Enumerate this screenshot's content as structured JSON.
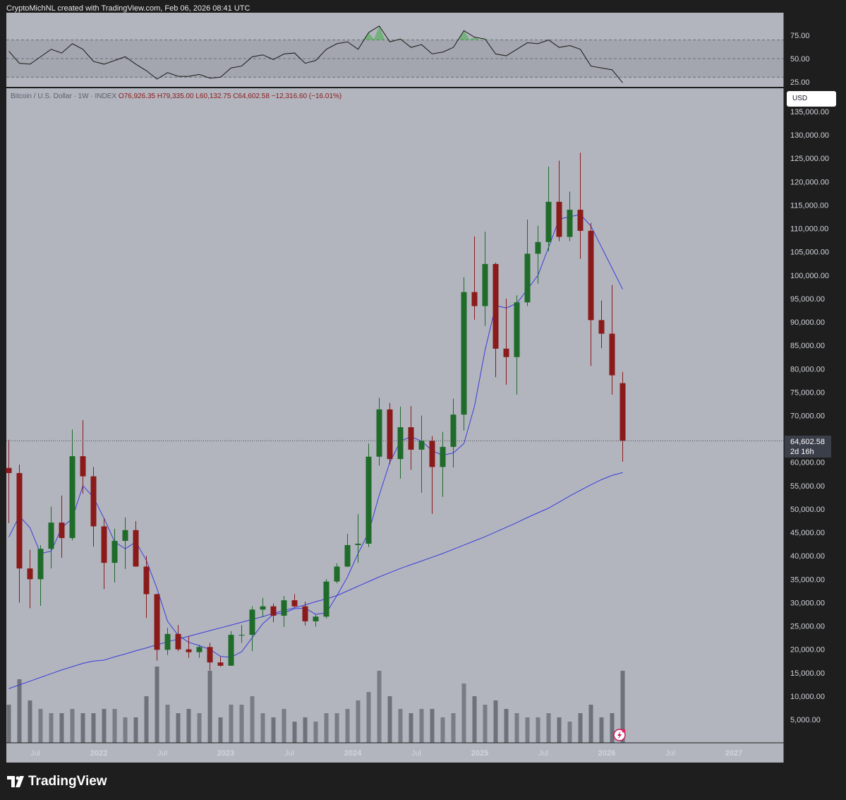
{
  "header": {
    "attribution": "CryptoMichNL created with TradingView.com, Feb 06, 2026 08:41 UTC"
  },
  "legend": {
    "symbol": "Bitcoin / U.S. Dollar · 1W · INDEX",
    "open": "O76,926.35",
    "high": "H79,335.00",
    "low": "L60,132.75",
    "close": "C64,602.58",
    "change": "−12,316.60 (−16.01%)"
  },
  "currency_button": "USD",
  "last_price": {
    "value": "64,602.58",
    "countdown": "2d 16h"
  },
  "brand": "TradingView",
  "colors": {
    "background": "#b2b5be",
    "up": "#1e6b2a",
    "down": "#8b1a1a",
    "ma": "#3c3cdc",
    "rsi_line": "#1a1a1a",
    "rsi_overbought_fill": "#4caf50"
  },
  "chart_data": [
    {
      "type": "candlestick",
      "title": "Bitcoin / U.S. Dollar · 1W · INDEX",
      "x_tick_labels": [
        "Jul",
        "2022",
        "Jul",
        "2023",
        "Jul",
        "2024",
        "Jul",
        "2025",
        "Jul",
        "2026",
        "Jul",
        "2027"
      ],
      "y_tick_labels": [
        "135,000.00",
        "130,000.00",
        "125,000.00",
        "120,000.00",
        "115,000.00",
        "110,000.00",
        "105,000.00",
        "100,000.00",
        "95,000.00",
        "90,000.00",
        "85,000.00",
        "80,000.00",
        "75,000.00",
        "70,000.00",
        "60,000.00",
        "55,000.00",
        "50,000.00",
        "45,000.00",
        "40,000.00",
        "35,000.00",
        "30,000.00",
        "25,000.00",
        "20,000.00",
        "15,000.00",
        "10,000.00",
        "5,000.00"
      ],
      "ylim": [
        0,
        140000
      ],
      "xlim": [
        "2021-04",
        "2027-03"
      ],
      "grid": false,
      "periods": [
        "2021-04",
        "2021-05",
        "2021-06",
        "2021-07",
        "2021-08",
        "2021-09",
        "2021-10",
        "2021-11",
        "2021-12",
        "2022-01",
        "2022-02",
        "2022-03",
        "2022-04",
        "2022-05",
        "2022-06",
        "2022-07",
        "2022-08",
        "2022-09",
        "2022-10",
        "2022-11",
        "2022-12",
        "2023-01",
        "2023-02",
        "2023-03",
        "2023-04",
        "2023-05",
        "2023-06",
        "2023-07",
        "2023-08",
        "2023-09",
        "2023-10",
        "2023-11",
        "2023-12",
        "2024-01",
        "2024-02",
        "2024-03",
        "2024-04",
        "2024-05",
        "2024-06",
        "2024-07",
        "2024-08",
        "2024-09",
        "2024-10",
        "2024-11",
        "2024-12",
        "2025-01",
        "2025-02",
        "2025-03",
        "2025-04",
        "2025-05",
        "2025-06",
        "2025-07",
        "2025-08",
        "2025-09",
        "2025-10",
        "2025-11",
        "2025-12",
        "2026-01",
        "2026-02"
      ],
      "ohlc": [
        [
          58800,
          64800,
          47000,
          57700
        ],
        [
          57700,
          59500,
          30000,
          37300
        ],
        [
          37300,
          41300,
          28800,
          35000
        ],
        [
          35000,
          42300,
          29300,
          41500
        ],
        [
          41500,
          50500,
          37300,
          47100
        ],
        [
          47100,
          52900,
          39600,
          43800
        ],
        [
          43800,
          67000,
          43300,
          61300
        ],
        [
          61300,
          69000,
          53300,
          57000
        ],
        [
          57000,
          59000,
          42000,
          46300
        ],
        [
          46300,
          48000,
          32900,
          38500
        ],
        [
          38500,
          45800,
          34300,
          43200
        ],
        [
          43200,
          48200,
          37200,
          45500
        ],
        [
          45500,
          47400,
          37700,
          37700
        ],
        [
          37700,
          40000,
          26700,
          31800
        ],
        [
          31800,
          31900,
          17600,
          19900
        ],
        [
          19900,
          24600,
          18800,
          23300
        ],
        [
          23300,
          25200,
          19600,
          20000
        ],
        [
          20000,
          22800,
          18200,
          19400
        ],
        [
          19400,
          21000,
          18200,
          20500
        ],
        [
          20500,
          21400,
          15500,
          17200
        ],
        [
          17200,
          18400,
          16300,
          16500
        ],
        [
          16500,
          23900,
          16500,
          23100
        ],
        [
          23100,
          25200,
          21400,
          23100
        ],
        [
          23100,
          29200,
          19600,
          28500
        ],
        [
          28500,
          31000,
          26900,
          29200
        ],
        [
          29200,
          29800,
          25800,
          27200
        ],
        [
          27200,
          31400,
          24800,
          30500
        ],
        [
          30500,
          31800,
          29000,
          29200
        ],
        [
          29200,
          30200,
          25100,
          26000
        ],
        [
          26000,
          27400,
          24900,
          27000
        ],
        [
          27000,
          35000,
          26600,
          34500
        ],
        [
          34500,
          38400,
          34100,
          37700
        ],
        [
          37700,
          44700,
          37600,
          42300
        ],
        [
          42300,
          48900,
          38500,
          42600
        ],
        [
          42600,
          64000,
          41900,
          61200
        ],
        [
          61200,
          73800,
          59300,
          71300
        ],
        [
          71300,
          72700,
          59600,
          60700
        ],
        [
          60700,
          71900,
          56500,
          67500
        ],
        [
          67500,
          72000,
          58400,
          62700
        ],
        [
          62700,
          70000,
          53500,
          64600
        ],
        [
          64600,
          65600,
          49000,
          59000
        ],
        [
          59000,
          66500,
          52600,
          63300
        ],
        [
          63300,
          73600,
          58900,
          70200
        ],
        [
          70200,
          99600,
          66800,
          96400
        ],
        [
          96400,
          108300,
          90500,
          93400
        ],
        [
          93400,
          109300,
          89200,
          102400
        ],
        [
          102400,
          102700,
          78200,
          84300
        ],
        [
          84300,
          95000,
          76600,
          82500
        ],
        [
          82500,
          95700,
          74500,
          94200
        ],
        [
          94200,
          111900,
          93400,
          104600
        ],
        [
          104600,
          110600,
          98200,
          107100
        ],
        [
          107100,
          123200,
          105100,
          115700
        ],
        [
          115700,
          124500,
          107300,
          108200
        ],
        [
          108200,
          117900,
          107300,
          114000
        ],
        [
          114000,
          126200,
          103500,
          109500
        ],
        [
          109500,
          111200,
          80600,
          90400
        ],
        [
          90400,
          94600,
          84400,
          87500
        ],
        [
          87500,
          97900,
          74500,
          78600
        ],
        [
          76926.35,
          79335.0,
          60132.75,
          64602.58
        ]
      ],
      "ma_short": [
        44000,
        48500,
        46000,
        40500,
        41000,
        46000,
        48000,
        55000,
        52500,
        48000,
        43000,
        41500,
        43000,
        39000,
        33000,
        26000,
        23000,
        21500,
        20800,
        20000,
        18500,
        18300,
        19500,
        22500,
        25500,
        27500,
        27800,
        28700,
        28800,
        27500,
        27800,
        31500,
        35500,
        40500,
        45000,
        53000,
        60000,
        64500,
        65500,
        64500,
        62500,
        61500,
        62000,
        64000,
        72000,
        84000,
        93500,
        93000,
        94000,
        97000,
        100000,
        106000,
        112000,
        112500,
        113000,
        110500,
        106000,
        101500,
        97000
      ],
      "ma_long": [
        11600,
        12400,
        13200,
        14000,
        14800,
        15600,
        16300,
        17000,
        17500,
        17700,
        18400,
        19000,
        19700,
        20300,
        21000,
        21600,
        22200,
        22800,
        23400,
        24000,
        24600,
        25200,
        25800,
        26400,
        27000,
        27700,
        28300,
        28900,
        29500,
        30200,
        30800,
        31500,
        32500,
        33500,
        34500,
        35500,
        36400,
        37300,
        38100,
        38900,
        39700,
        40500,
        41400,
        42300,
        43200,
        44100,
        45100,
        46100,
        47100,
        48200,
        49200,
        50200,
        51500,
        52800,
        54000,
        55200,
        56300,
        57200,
        57800
      ],
      "volume_relative": [
        0.45,
        0.75,
        0.5,
        0.4,
        0.35,
        0.35,
        0.4,
        0.35,
        0.35,
        0.4,
        0.4,
        0.3,
        0.3,
        0.55,
        0.9,
        0.45,
        0.35,
        0.4,
        0.35,
        0.85,
        0.3,
        0.45,
        0.45,
        0.55,
        0.35,
        0.3,
        0.4,
        0.25,
        0.3,
        0.25,
        0.35,
        0.35,
        0.4,
        0.5,
        0.6,
        0.85,
        0.55,
        0.4,
        0.35,
        0.4,
        0.4,
        0.3,
        0.35,
        0.7,
        0.55,
        0.45,
        0.5,
        0.4,
        0.35,
        0.3,
        0.3,
        0.35,
        0.3,
        0.25,
        0.35,
        0.45,
        0.3,
        0.35,
        0.85
      ],
      "last_price": 64602.58
    },
    {
      "type": "line",
      "title": "",
      "y_tick_labels": [
        "75.00",
        "50.00",
        "25.00"
      ],
      "ylim": [
        15,
        95
      ],
      "bands": [
        30,
        50,
        70
      ],
      "rsi": [
        58,
        45,
        44,
        52,
        60,
        56,
        66,
        60,
        47,
        44,
        48,
        52,
        44,
        37,
        28,
        35,
        31,
        31,
        33,
        29,
        30,
        40,
        42,
        52,
        54,
        49,
        55,
        56,
        45,
        48,
        60,
        66,
        68,
        60,
        78,
        85,
        68,
        71,
        62,
        65,
        55,
        57,
        62,
        80,
        73,
        71,
        55,
        53,
        60,
        67,
        66,
        70,
        62,
        64,
        60,
        42,
        40,
        38,
        24
      ]
    }
  ]
}
